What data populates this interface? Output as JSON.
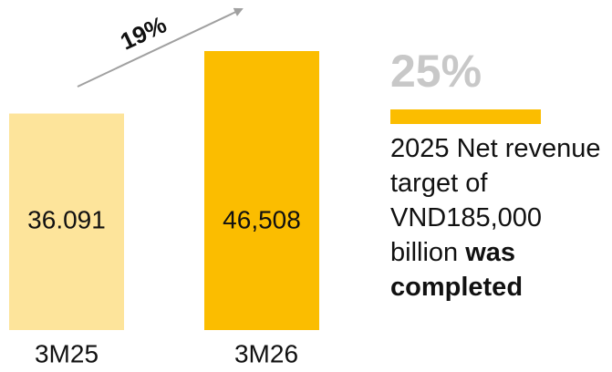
{
  "chart_data": {
    "type": "bar",
    "categories": [
      "3M25",
      "3M26"
    ],
    "values": [
      36091,
      46508
    ],
    "value_labels": [
      "36.091",
      "46,508"
    ],
    "colors": [
      "#fde49b",
      "#fbbd00"
    ],
    "growth_label": "19%",
    "highlight": "25%",
    "note": [
      "2025 Net revenue target of VND185,000 billion",
      "was completed"
    ]
  }
}
